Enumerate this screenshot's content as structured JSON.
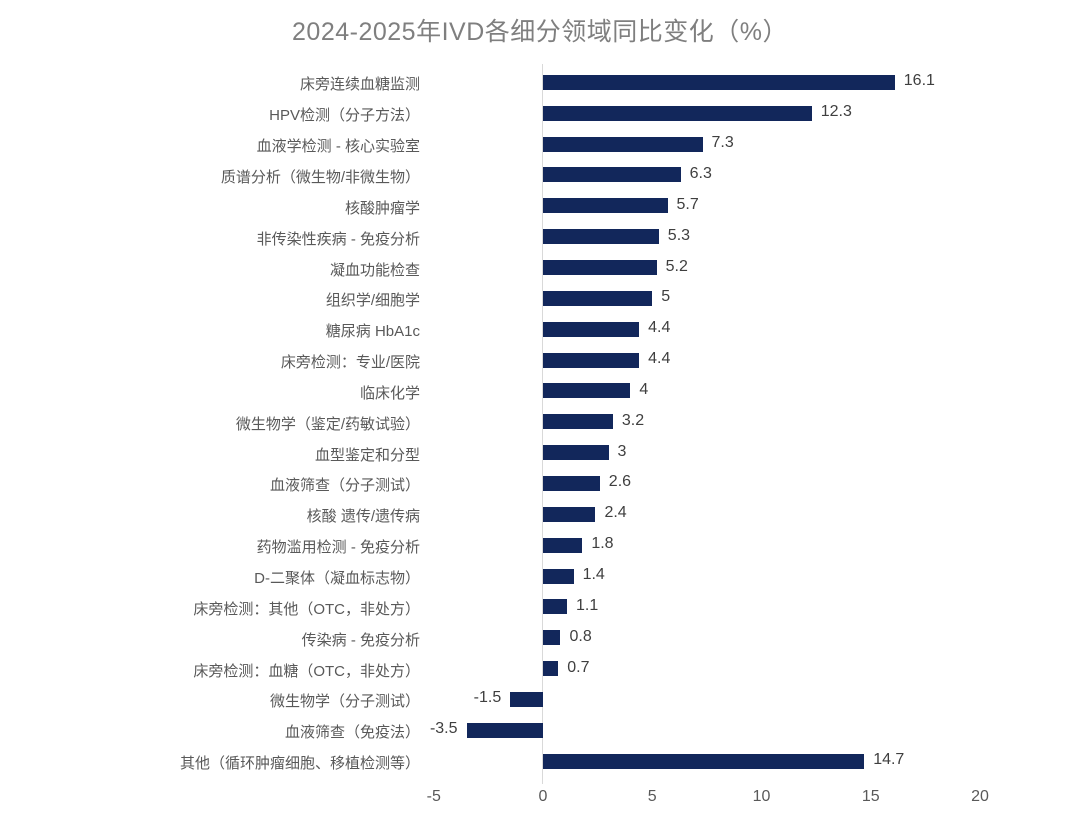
{
  "title": "2024-2025年IVD各细分领域同比变化（%）",
  "colors": {
    "bar": "#12275b",
    "title_text": "#7f7f7f",
    "category_text": "#595959",
    "value_text": "#3f3f3f",
    "axis_line": "#d9d9d9",
    "background": "#ffffff"
  },
  "chart_data": {
    "type": "bar",
    "orientation": "horizontal",
    "title": "2024-2025年IVD各细分领域同比变化（%）",
    "categories": [
      "床旁连续血糖监测",
      "HPV检测（分子方法）",
      "血液学检测 - 核心实验室",
      "质谱分析（微生物/非微生物）",
      "核酸肿瘤学",
      "非传染性疾病 - 免疫分析",
      "凝血功能检查",
      "组织学/细胞学",
      "糖尿病 HbA1c",
      "床旁检测：专业/医院",
      "临床化学",
      "微生物学（鉴定/药敏试验）",
      "血型鉴定和分型",
      "血液筛查（分子测试）",
      "核酸 遗传/遗传病",
      "药物滥用检测 - 免疫分析",
      "D-二聚体（凝血标志物）",
      "床旁检测：其他（OTC，非处方）",
      "传染病 - 免疫分析",
      "床旁检测：血糖（OTC，非处方）",
      "微生物学（分子测试）",
      "血液筛查（免疫法）",
      "其他（循环肿瘤细胞、移植检测等）"
    ],
    "values": [
      16.1,
      12.3,
      7.3,
      6.3,
      5.7,
      5.3,
      5.2,
      5,
      4.4,
      4.4,
      4,
      3.2,
      3,
      2.6,
      2.4,
      1.8,
      1.4,
      1.1,
      0.8,
      0.7,
      -1.5,
      -3.5,
      14.7
    ],
    "value_labels": [
      "16.1",
      "12.3",
      "7.3",
      "6.3",
      "5.7",
      "5.3",
      "5.2",
      "5",
      "4.4",
      "4.4",
      "4",
      "3.2",
      "3",
      "2.6",
      "2.4",
      "1.8",
      "1.4",
      "1.1",
      "0.8",
      "0.7",
      "-1.5",
      "-3.5",
      "14.7"
    ],
    "xlabel": "",
    "ylabel": "",
    "xlim": [
      -5,
      20
    ],
    "x_ticks": [
      -5,
      0,
      5,
      10,
      15,
      20
    ],
    "x_tick_labels": [
      "-5",
      "0",
      "5",
      "10",
      "15",
      "20"
    ],
    "grid": false,
    "legend": false,
    "data_labels": true
  }
}
